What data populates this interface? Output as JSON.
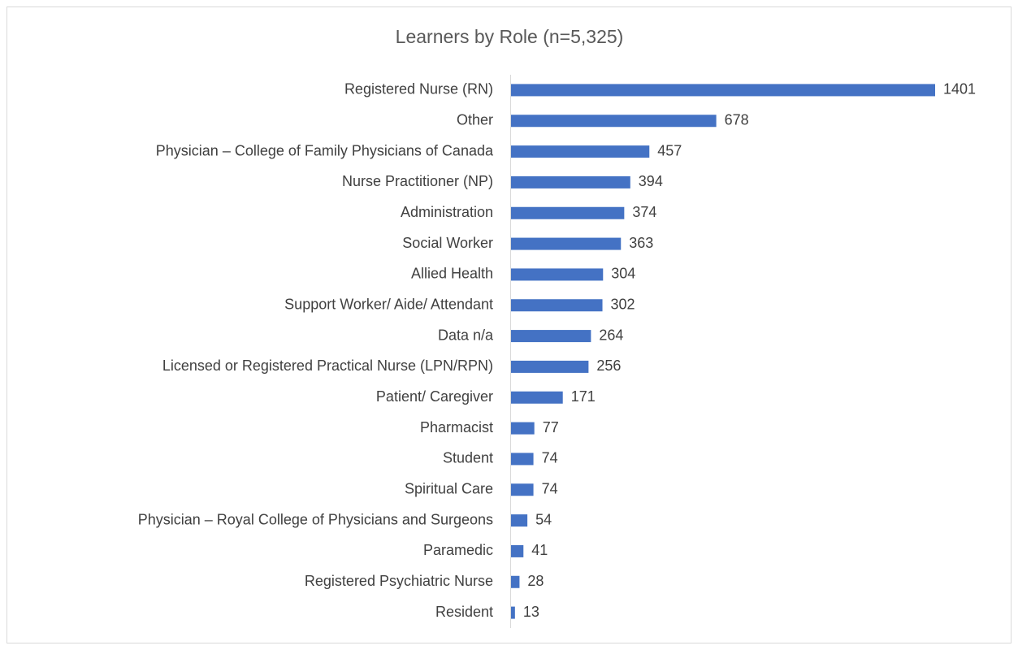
{
  "chart_data": {
    "type": "bar",
    "orientation": "horizontal",
    "title": "Learners by Role (n=5,325)",
    "categories": [
      "Registered Nurse (RN)",
      "Other",
      "Physician – College of Family Physicians of Canada",
      "Nurse Practitioner (NP)",
      "Administration",
      "Social Worker",
      "Allied Health",
      "Support Worker/ Aide/ Attendant",
      "Data n/a",
      "Licensed or Registered Practical Nurse (LPN/RPN)",
      "Patient/ Caregiver",
      "Pharmacist",
      "Student",
      "Spiritual Care",
      "Physician – Royal College of Physicians and Surgeons",
      "Paramedic",
      "Registered Psychiatric Nurse",
      "Resident"
    ],
    "values": [
      1401,
      678,
      457,
      394,
      374,
      363,
      304,
      302,
      264,
      256,
      171,
      77,
      74,
      74,
      54,
      41,
      28,
      13
    ],
    "color": "#4472c4"
  }
}
